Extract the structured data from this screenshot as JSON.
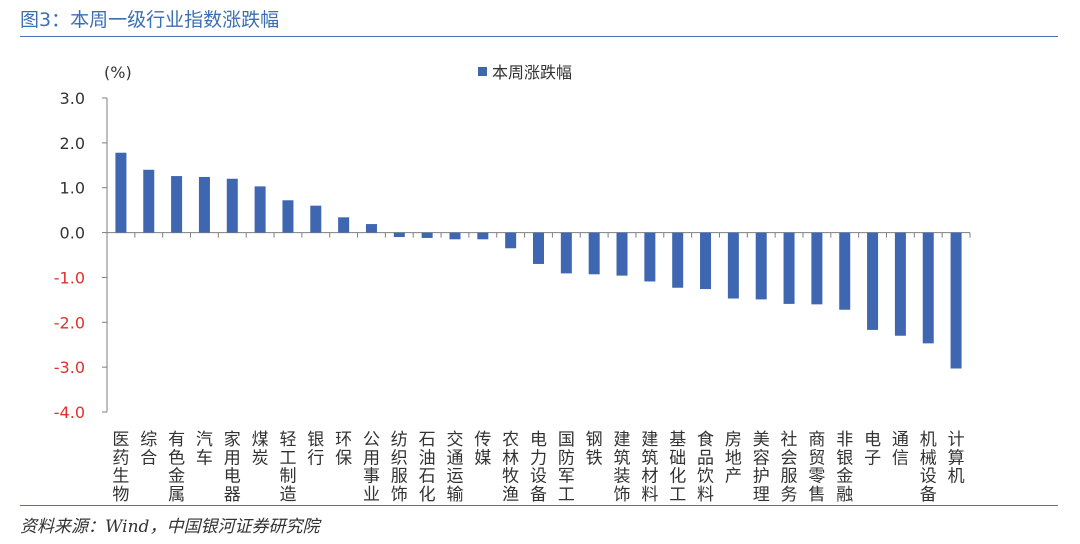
{
  "title": "图3：本周一级行业指数涨跌幅",
  "source": "资料来源：Wind，中国银河证券研究院",
  "colors": {
    "bar": "#3F67B1",
    "negative_tick": "#E0302A",
    "axis": "#7F7F7F",
    "text": "#333333"
  },
  "chart_data": {
    "type": "bar",
    "ylabel": "(%)",
    "ylim": [
      -4.0,
      3.0
    ],
    "yticks": [
      "3.0",
      "2.0",
      "1.0",
      "0.0",
      "-1.0",
      "-2.0",
      "-3.0",
      "-4.0"
    ],
    "legend": {
      "position": "top-center"
    },
    "grid": false,
    "categories": [
      "医药生物",
      "综合",
      "有色金属",
      "汽车",
      "家用电器",
      "煤炭",
      "轻工制造",
      "银行",
      "环保",
      "公用事业",
      "纺织服饰",
      "石油石化",
      "交通运输",
      "传媒",
      "农林牧渔",
      "电力设备",
      "国防军工",
      "钢铁",
      "建筑装饰",
      "建筑材料",
      "基础化工",
      "食品饮料",
      "房地产",
      "美容护理",
      "社会服务",
      "商贸零售",
      "非银金融",
      "电子",
      "通信",
      "机械设备",
      "计算机"
    ],
    "series": [
      {
        "name": "本周涨跌幅",
        "values": [
          1.78,
          1.4,
          1.26,
          1.24,
          1.2,
          1.03,
          0.72,
          0.6,
          0.34,
          0.19,
          -0.1,
          -0.12,
          -0.15,
          -0.15,
          -0.35,
          -0.7,
          -0.91,
          -0.93,
          -0.96,
          -1.09,
          -1.23,
          -1.26,
          -1.47,
          -1.49,
          -1.59,
          -1.6,
          -1.72,
          -2.17,
          -2.3,
          -2.47,
          -3.03
        ]
      }
    ]
  }
}
